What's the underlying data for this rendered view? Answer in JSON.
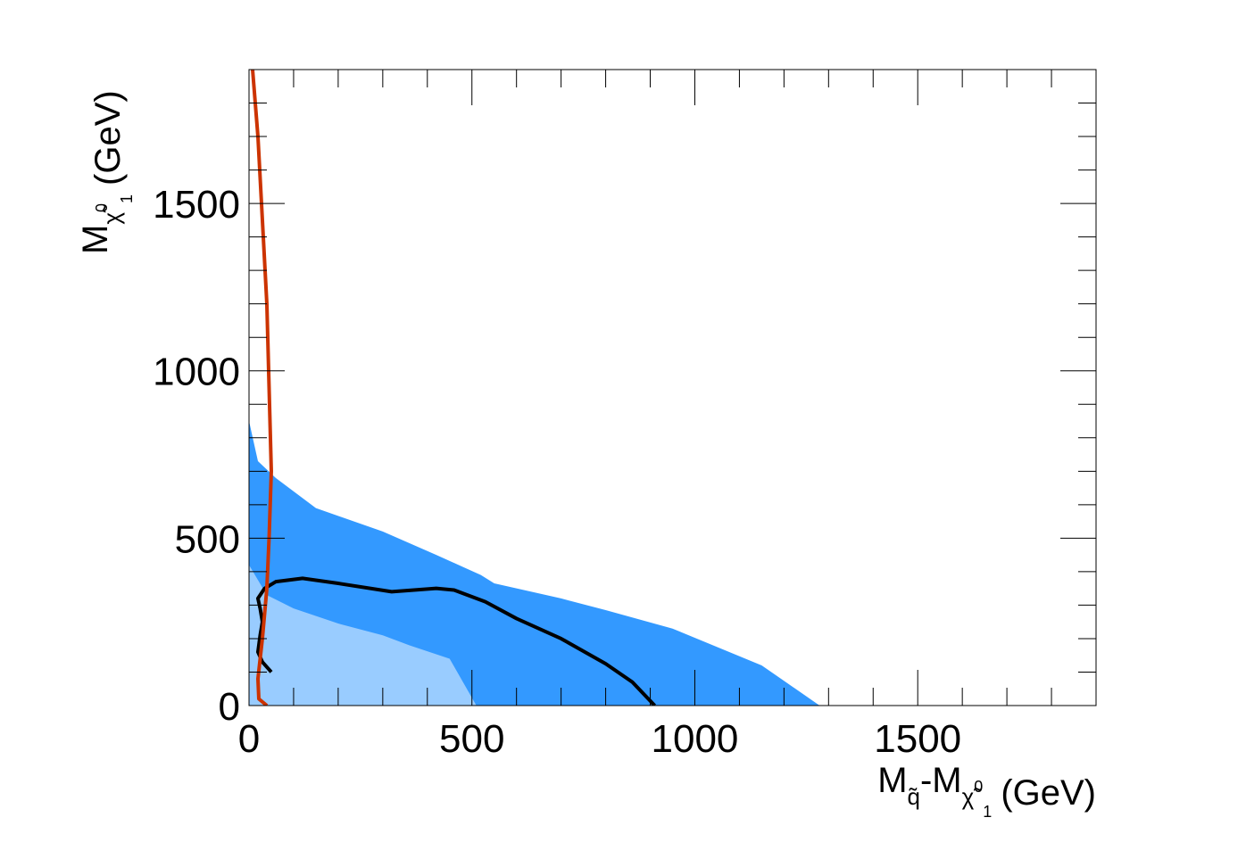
{
  "chart_data": {
    "type": "area",
    "x_axis": {
      "label_main": "M",
      "label_sub_a": "q̃",
      "label_mid": "-M",
      "label_sub_b": "χ̃",
      "label_sub_b_sup": "0",
      "label_sub_b_sub": "1",
      "label_unit": "(GeV)",
      "range": [
        0,
        1900
      ],
      "ticks": [
        0,
        500,
        1000,
        1500
      ],
      "tick_labels": [
        "0",
        "500",
        "1000",
        "1500"
      ]
    },
    "y_axis": {
      "label_main": "M",
      "label_sub": "χ̃",
      "label_sub_sup": "0",
      "label_sub_sub": "1",
      "label_unit": "(GeV)",
      "range": [
        0,
        1900
      ],
      "ticks": [
        0,
        500,
        1000,
        1500
      ],
      "tick_labels": [
        "0",
        "500",
        "1000",
        "1500"
      ]
    },
    "series": [
      {
        "kind": "band",
        "color": "#3399ff",
        "boundary": [
          [
            0,
            850
          ],
          [
            20,
            730
          ],
          [
            60,
            680
          ],
          [
            150,
            590
          ],
          [
            300,
            520
          ],
          [
            420,
            450
          ],
          [
            520,
            390
          ],
          [
            550,
            365
          ],
          [
            700,
            320
          ],
          [
            800,
            285
          ],
          [
            950,
            230
          ],
          [
            1150,
            120
          ],
          [
            1280,
            0
          ],
          [
            0,
            0
          ]
        ]
      },
      {
        "kind": "band",
        "color": "#99ccff",
        "boundary": [
          [
            0,
            420
          ],
          [
            40,
            330
          ],
          [
            100,
            290
          ],
          [
            200,
            245
          ],
          [
            300,
            210
          ],
          [
            360,
            180
          ],
          [
            450,
            140
          ],
          [
            510,
            0
          ],
          [
            0,
            0
          ]
        ]
      },
      {
        "kind": "line",
        "color": "#000000",
        "points": [
          [
            50,
            100
          ],
          [
            30,
            130
          ],
          [
            20,
            160
          ],
          [
            25,
            210
          ],
          [
            30,
            250
          ],
          [
            25,
            290
          ],
          [
            20,
            320
          ],
          [
            35,
            350
          ],
          [
            60,
            370
          ],
          [
            120,
            380
          ],
          [
            200,
            365
          ],
          [
            320,
            340
          ],
          [
            420,
            350
          ],
          [
            460,
            345
          ],
          [
            530,
            310
          ],
          [
            600,
            260
          ],
          [
            700,
            200
          ],
          [
            800,
            125
          ],
          [
            860,
            70
          ],
          [
            910,
            0
          ]
        ]
      },
      {
        "kind": "line",
        "color": "#cc3300",
        "points": [
          [
            8,
            1900
          ],
          [
            20,
            1700
          ],
          [
            30,
            1450
          ],
          [
            40,
            1200
          ],
          [
            45,
            950
          ],
          [
            50,
            700
          ],
          [
            45,
            500
          ],
          [
            40,
            350
          ],
          [
            30,
            200
          ],
          [
            20,
            80
          ],
          [
            22,
            20
          ],
          [
            40,
            0
          ]
        ]
      }
    ],
    "grid": false,
    "legend": "none"
  }
}
